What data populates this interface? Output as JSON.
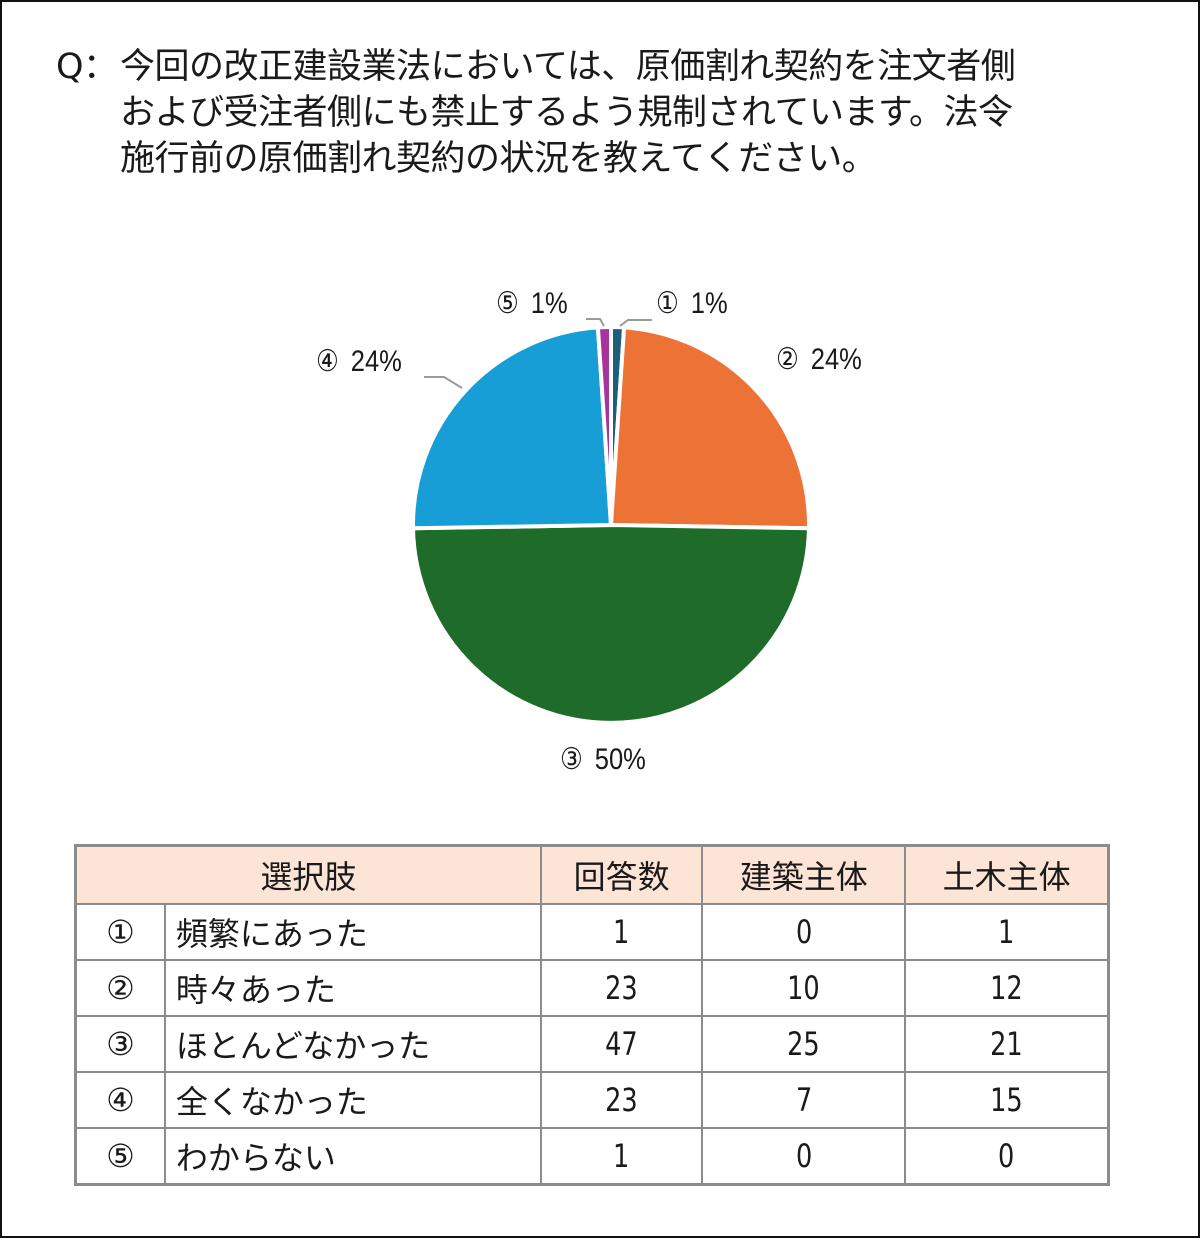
{
  "question": {
    "prefix": "Q：",
    "lines": [
      "今回の改正建設業法においては、原価割れ契約を注文者側",
      "および受注者側にも禁止するよう規制されています。法令",
      "施行前の原価割れ契約の状況を教えてください。"
    ]
  },
  "chart_data": {
    "type": "pie",
    "title": "",
    "categories": [
      "①",
      "②",
      "③",
      "④",
      "⑤"
    ],
    "labels": [
      "頻繁にあった",
      "時々あった",
      "ほとんどなかった",
      "全くなかった",
      "わからない"
    ],
    "values": [
      1,
      23,
      47,
      23,
      1
    ],
    "percent_labels": [
      "1%",
      "24%",
      "50%",
      "24%",
      "1%"
    ],
    "colors": [
      "#1c5f7a",
      "#ec7236",
      "#1e6b2a",
      "#179ed6",
      "#a6349c"
    ],
    "start_angle_deg": 0,
    "direction": "clockwise",
    "legend": "none (labels outside slices with leader lines)"
  },
  "pie_labels": [
    {
      "num": "①",
      "pct": "1%"
    },
    {
      "num": "②",
      "pct": "24%"
    },
    {
      "num": "③",
      "pct": "50%"
    },
    {
      "num": "④",
      "pct": "24%"
    },
    {
      "num": "⑤",
      "pct": "1%"
    }
  ],
  "table": {
    "headers": [
      "選択肢",
      "回答数",
      "建築主体",
      "土木主体"
    ],
    "rows": [
      {
        "idx": "①",
        "label": "頻繁にあった",
        "count": "1",
        "kenchiku": "0",
        "doboku": "1"
      },
      {
        "idx": "②",
        "label": "時々あった",
        "count": "23",
        "kenchiku": "10",
        "doboku": "12"
      },
      {
        "idx": "③",
        "label": "ほとんどなかった",
        "count": "47",
        "kenchiku": "25",
        "doboku": "21"
      },
      {
        "idx": "④",
        "label": "全くなかった",
        "count": "23",
        "kenchiku": "7",
        "doboku": "15"
      },
      {
        "idx": "⑤",
        "label": "わからない",
        "count": "1",
        "kenchiku": "0",
        "doboku": "0"
      }
    ]
  }
}
